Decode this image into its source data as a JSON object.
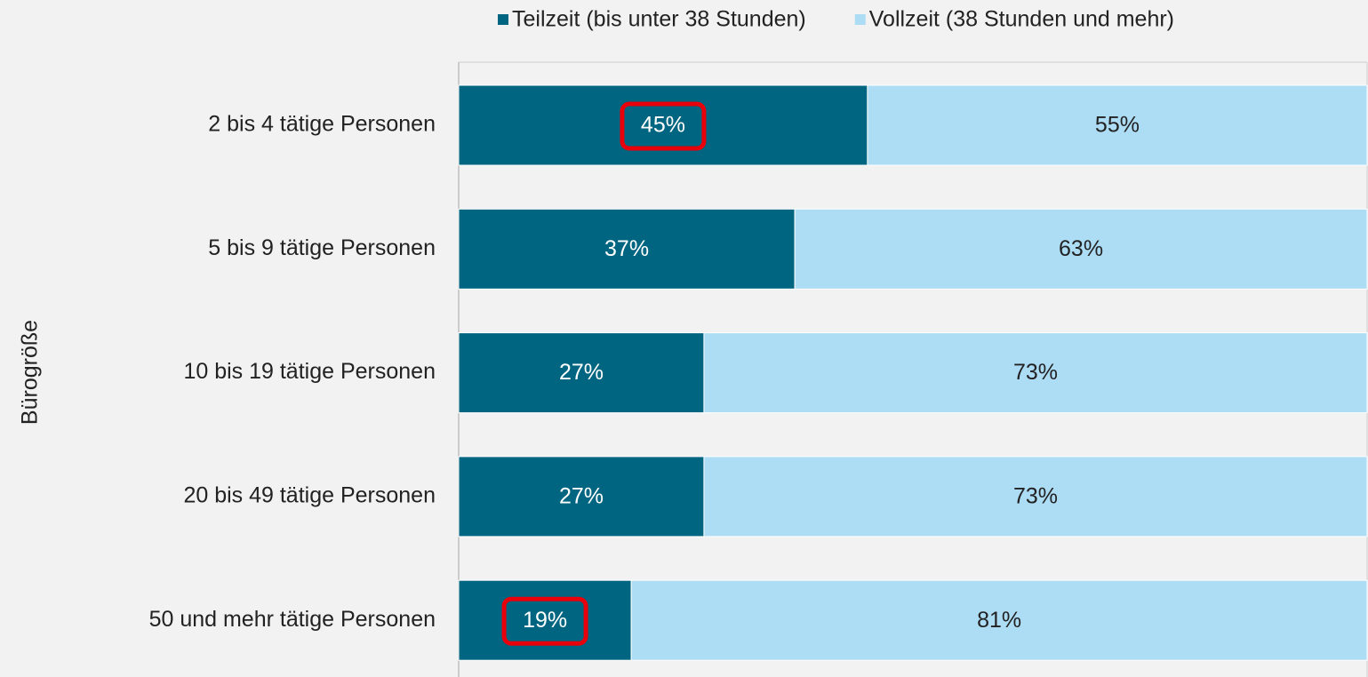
{
  "chart_data": {
    "type": "stacked_bar_horizontal",
    "axis_label": "Bürogröße",
    "categories": [
      "2 bis 4 tätige Personen",
      "5 bis 9 tätige Personen",
      "10 bis 19 tätige Personen",
      "20 bis 49 tätige Personen",
      "50 und mehr tätige Personen"
    ],
    "series": [
      {
        "name": "Teilzeit (bis unter 38 Stunden)",
        "color": "#006580",
        "label_color": "#ffffff",
        "values": [
          45,
          37,
          27,
          27,
          19
        ],
        "value_labels": [
          "45%",
          "37%",
          "27%",
          "27%",
          "19%"
        ]
      },
      {
        "name": "Vollzeit (38 Stunden und mehr)",
        "color": "#addcf5",
        "label_color": "#222222",
        "values": [
          55,
          63,
          73,
          73,
          81
        ],
        "value_labels": [
          "55%",
          "63%",
          "73%",
          "73%",
          "81%"
        ]
      }
    ],
    "xlim": [
      0,
      100
    ],
    "legend": "top",
    "highlights": [
      {
        "series": 0,
        "index": 0
      },
      {
        "series": 0,
        "index": 4
      }
    ],
    "highlight_color": "#e8000b"
  }
}
